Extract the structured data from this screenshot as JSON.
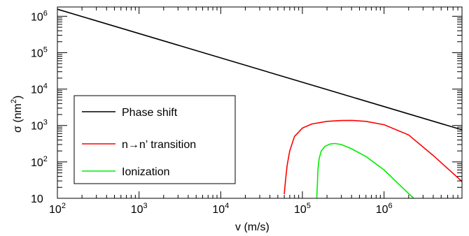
{
  "chart_data": {
    "type": "line",
    "xlabel": "v (m/s)",
    "ylabel_main": "σ (nm",
    "ylabel_sup": "2",
    "ylabel_end": ")",
    "x_scale": "log",
    "y_scale": "log",
    "xlim": [
      100,
      9000000
    ],
    "ylim": [
      10,
      1800000
    ],
    "grid": false,
    "legend_position": "bottom-left",
    "x_ticks": [
      {
        "value": 100,
        "base": "10",
        "exp": "2"
      },
      {
        "value": 1000,
        "base": "10",
        "exp": "3"
      },
      {
        "value": 10000,
        "base": "10",
        "exp": "4"
      },
      {
        "value": 100000,
        "base": "10",
        "exp": "5"
      },
      {
        "value": 1000000,
        "base": "10",
        "exp": "6"
      }
    ],
    "y_ticks": [
      {
        "value": 10,
        "base": "10",
        "exp": ""
      },
      {
        "value": 100,
        "base": "10",
        "exp": "2"
      },
      {
        "value": 1000,
        "base": "10",
        "exp": "3"
      },
      {
        "value": 10000,
        "base": "10",
        "exp": "4"
      },
      {
        "value": 100000,
        "base": "10",
        "exp": "5"
      },
      {
        "value": 1000000,
        "base": "10",
        "exp": "6"
      }
    ],
    "series": [
      {
        "name": "Phase shift",
        "color": "#000000",
        "x": [
          100,
          9000000
        ],
        "y": [
          1560000,
          760
        ]
      },
      {
        "name": "n→n’ transition",
        "color": "#ff0000",
        "x": [
          60000,
          62000,
          65000,
          70000,
          80000,
          100000,
          130000,
          200000,
          300000,
          400000,
          600000,
          1000000,
          2000000,
          4000000,
          9000000
        ],
        "y": [
          13,
          30,
          80,
          200,
          500,
          850,
          1100,
          1300,
          1370,
          1380,
          1300,
          1050,
          550,
          150,
          29
        ]
      },
      {
        "name": "Ionization",
        "color": "#00ee00",
        "x": [
          150000,
          152000,
          155000,
          160000,
          170000,
          190000,
          220000,
          250000,
          300000,
          400000,
          600000,
          1000000,
          1500000,
          2300000
        ],
        "y": [
          10,
          20,
          60,
          120,
          200,
          270,
          310,
          320,
          300,
          230,
          140,
          60,
          25,
          10
        ]
      }
    ]
  }
}
